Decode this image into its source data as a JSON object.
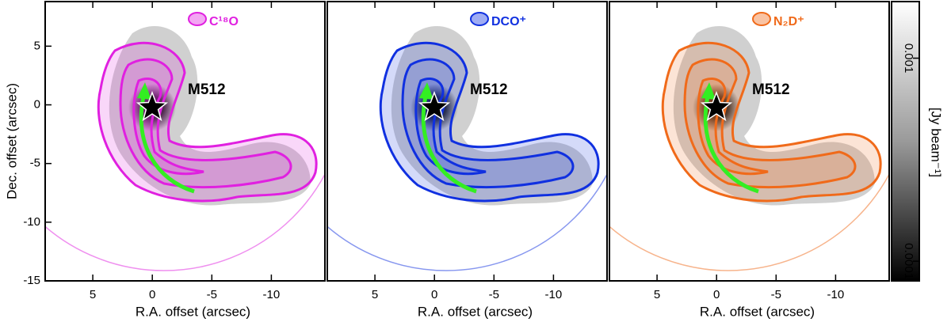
{
  "chart_data": [
    {
      "type": "contour",
      "label": "C¹⁸O",
      "source": "M512",
      "color": "#e020e0",
      "xlabel": "R.A. offset (arcsec)",
      "ylabel": "Dec. offset (arcsec)",
      "xlim": [
        9,
        -14.5
      ],
      "ylim": [
        -15,
        8.8
      ],
      "xticks": [
        5,
        0,
        -5,
        -10
      ],
      "yticks": [
        5,
        0,
        -5,
        -10,
        -15
      ]
    },
    {
      "type": "contour",
      "label": "DCO⁺",
      "source": "M512",
      "color": "#1030e0",
      "xlabel": "R.A. offset (arcsec)",
      "xlim": [
        9,
        -14.5
      ],
      "ylim": [
        -15,
        8.8
      ],
      "xticks": [
        5,
        0,
        -5,
        -10
      ]
    },
    {
      "type": "contour",
      "label": "N₂D⁺",
      "source": "M512",
      "color": "#f06a1a",
      "xlabel": "R.A. offset (arcsec)",
      "xlim": [
        9,
        -14.5
      ],
      "ylim": [
        -15,
        8.8
      ],
      "xticks": [
        5,
        0,
        -5,
        -10
      ]
    }
  ],
  "colorbar": {
    "label": "[Jy beam⁻¹]",
    "log": true,
    "lim": [
      8e-05,
      0.0019
    ],
    "ticks": [
      0.001,
      0.0001
    ]
  }
}
